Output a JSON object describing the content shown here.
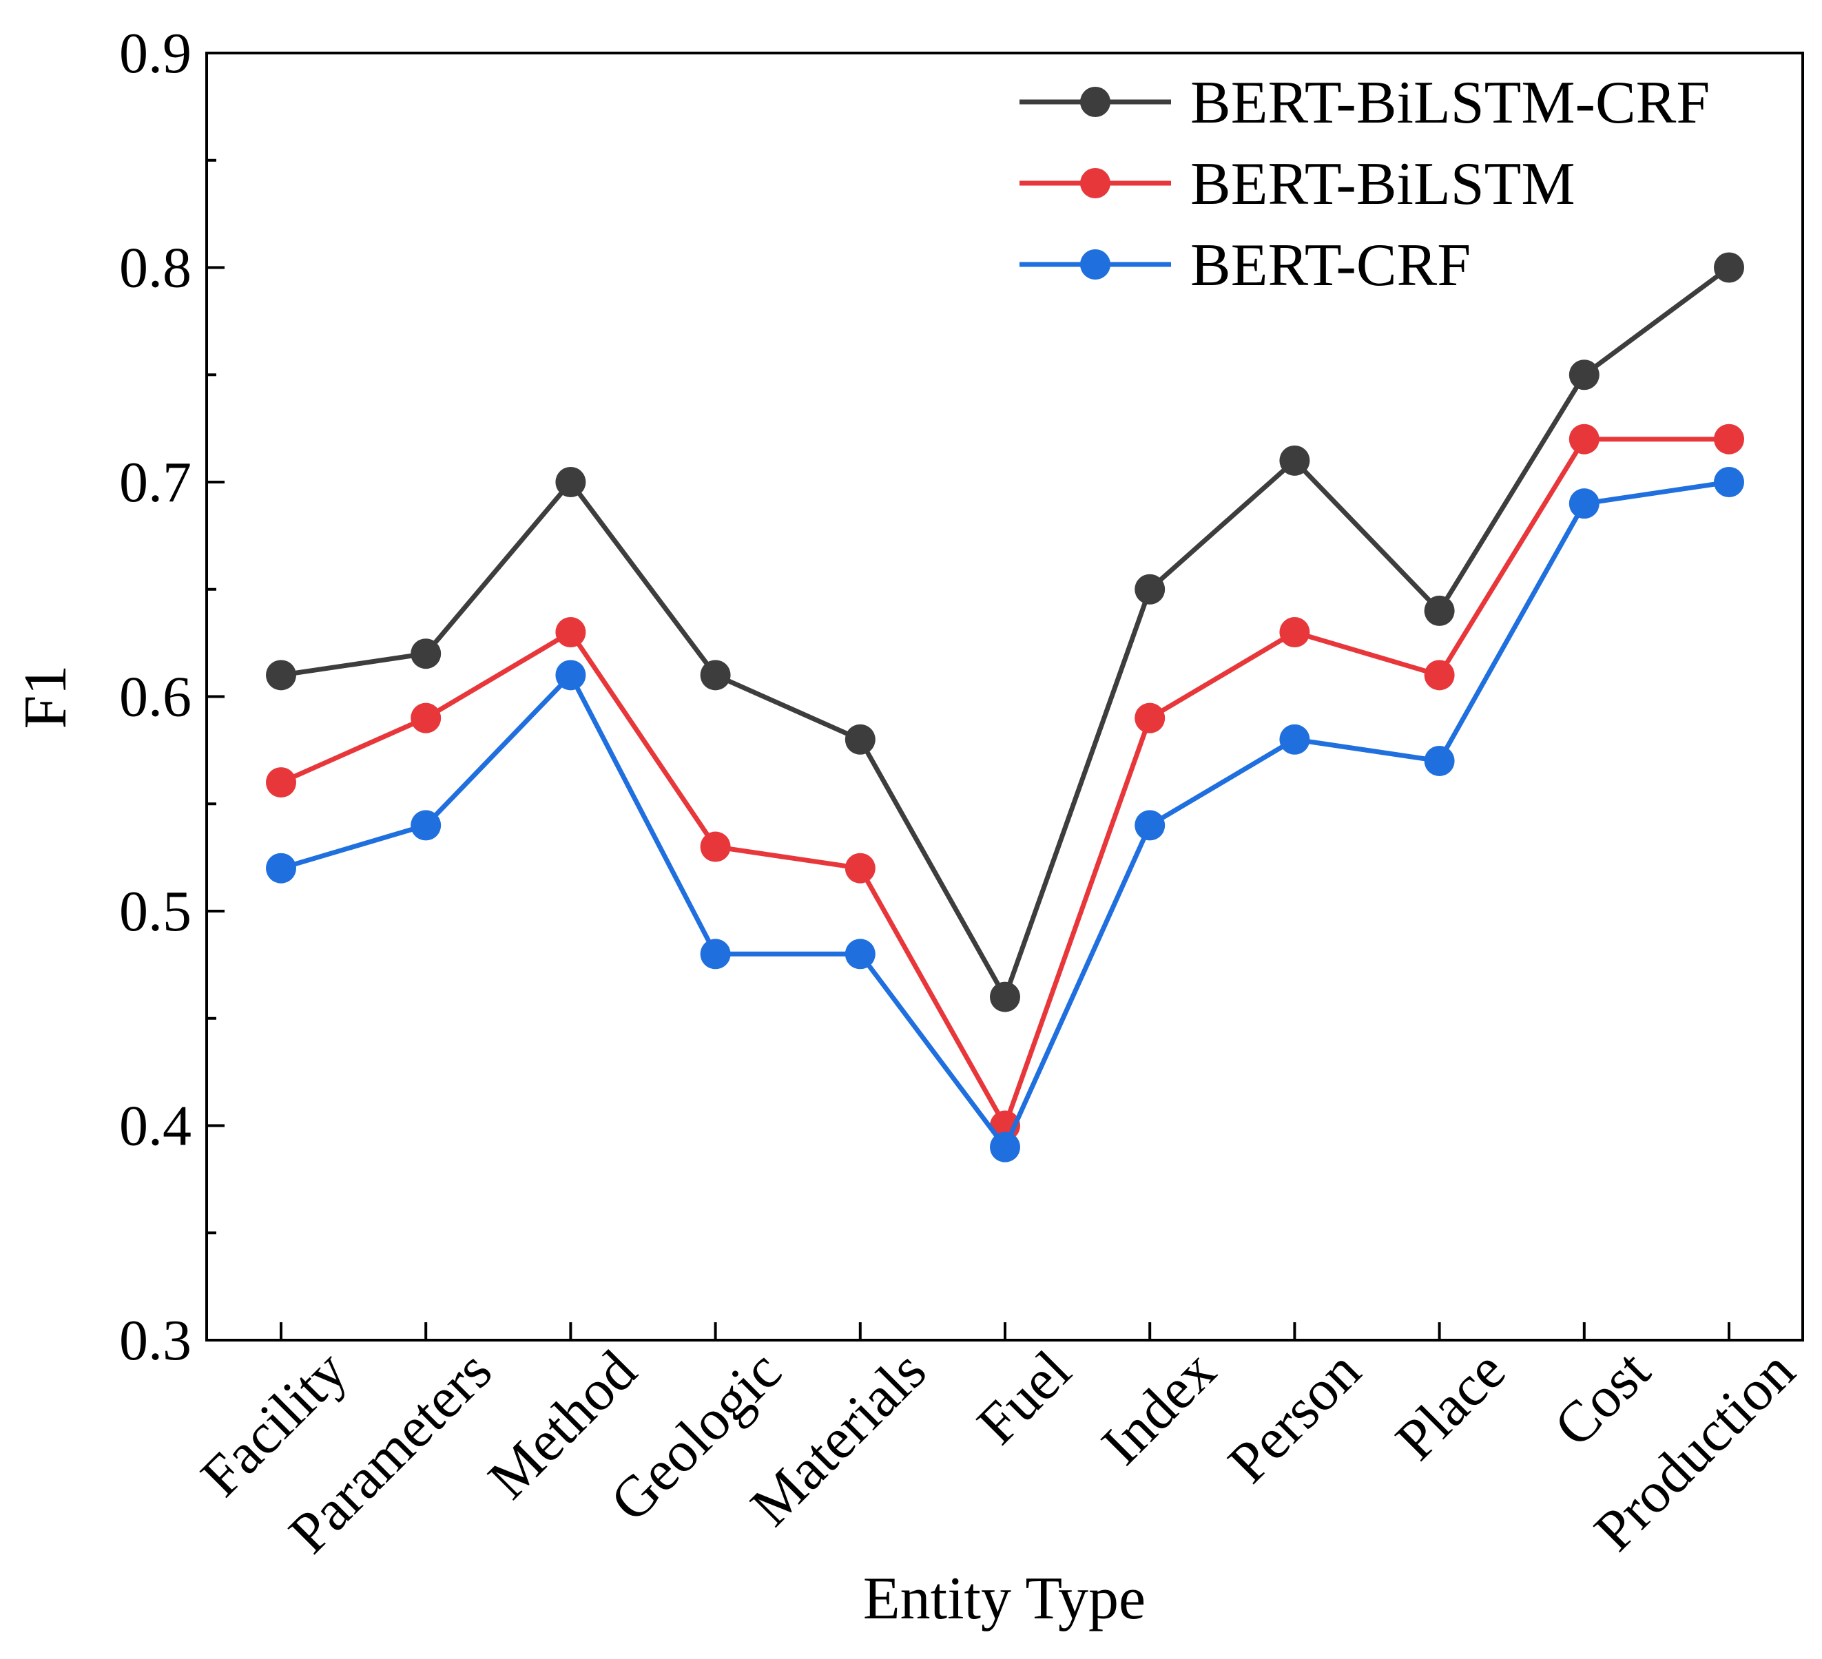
{
  "chart_data": {
    "type": "line",
    "title": "",
    "xlabel": "Entity Type",
    "ylabel": "F1",
    "ylim": [
      0.3,
      0.9
    ],
    "yticks": [
      "0.3",
      "0.4",
      "0.5",
      "0.6",
      "0.7",
      "0.8",
      "0.9"
    ],
    "grid": false,
    "legend_position": "top-right",
    "categories": [
      "Facility",
      "Parameters",
      "Method",
      "Geologic",
      "Materials",
      "Fuel",
      "Index",
      "Person",
      "Place",
      "Cost",
      "Production"
    ],
    "series": [
      {
        "name": "BERT-BiLSTM-CRF",
        "color": "#3d3d3d",
        "values": [
          0.61,
          0.62,
          0.7,
          0.61,
          0.58,
          0.46,
          0.65,
          0.71,
          0.64,
          0.75,
          0.8
        ]
      },
      {
        "name": "BERT-BiLSTM",
        "color": "#e8373b",
        "values": [
          0.56,
          0.59,
          0.63,
          0.53,
          0.52,
          0.4,
          0.59,
          0.63,
          0.61,
          0.72,
          0.72
        ]
      },
      {
        "name": "BERT-CRF",
        "color": "#1f6fde",
        "values": [
          0.52,
          0.54,
          0.61,
          0.48,
          0.48,
          0.39,
          0.54,
          0.58,
          0.57,
          0.69,
          0.7
        ]
      }
    ]
  }
}
